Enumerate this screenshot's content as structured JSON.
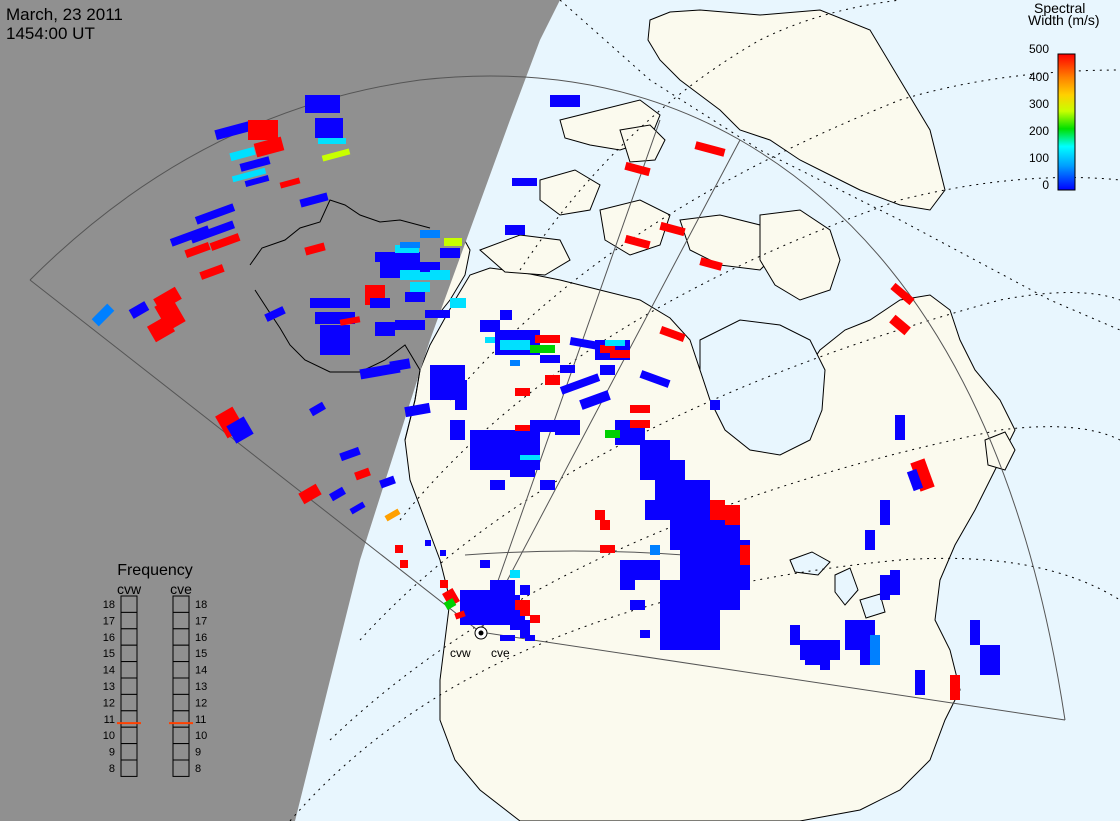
{
  "header": {
    "date": "March, 23 2011",
    "time": "1454:00 UT"
  },
  "colorbar": {
    "title_line1": "Spectral",
    "title_line2": "Width (m/s)",
    "ticks": [
      "500",
      "400",
      "300",
      "200",
      "100",
      "0"
    ],
    "colors": [
      "#0000ff",
      "#00a0ff",
      "#00ffff",
      "#00e000",
      "#c8ff00",
      "#ffd000",
      "#ff8000",
      "#ff0000"
    ]
  },
  "frequency_panel": {
    "title": "Frequency",
    "radars": [
      {
        "name": "cvw",
        "value": 10.75
      },
      {
        "name": "cve",
        "value": 10.75
      }
    ],
    "levels": [
      "18",
      "17",
      "16",
      "15",
      "14",
      "13",
      "12",
      "11",
      "10",
      "9",
      "8"
    ]
  },
  "radar_sites": [
    {
      "name": "cvw"
    },
    {
      "name": "cve"
    }
  ],
  "colors": {
    "night": "#909090",
    "ocean": "#e8f6fe",
    "land": "#fbfaee",
    "coast": "#000000",
    "indicator": "#ff4000"
  }
}
